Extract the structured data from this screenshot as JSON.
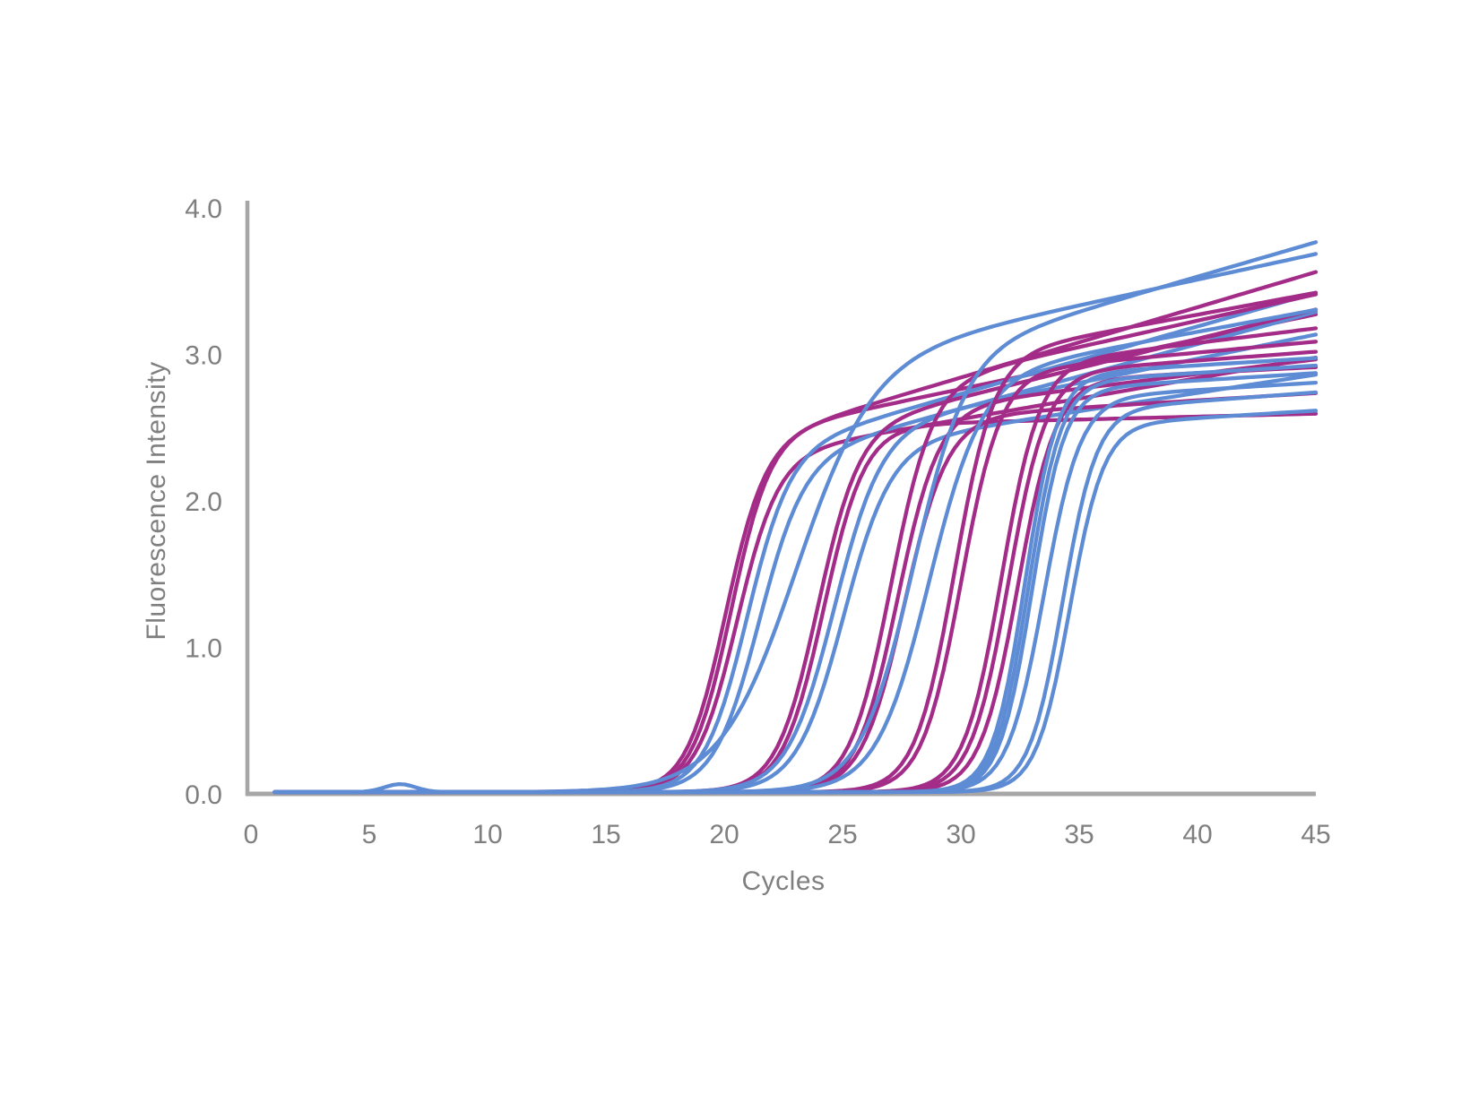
{
  "page": {
    "background": "#ffffff"
  },
  "chart_data": {
    "type": "line",
    "title": "",
    "xlabel": "Cycles",
    "ylabel": "Fluorescence Intensity",
    "xlim": [
      0,
      45
    ],
    "ylim": [
      0,
      4
    ],
    "grid": false,
    "legend": false,
    "x_ticks": [
      {
        "value": 0,
        "label": "0"
      },
      {
        "value": 5,
        "label": "5"
      },
      {
        "value": 10,
        "label": "10"
      },
      {
        "value": 15,
        "label": "15"
      },
      {
        "value": 20,
        "label": "20"
      },
      {
        "value": 25,
        "label": "25"
      },
      {
        "value": 30,
        "label": "30"
      },
      {
        "value": 35,
        "label": "35"
      },
      {
        "value": 40,
        "label": "40"
      },
      {
        "value": 45,
        "label": "45"
      }
    ],
    "y_ticks": [
      {
        "value": 0,
        "label": "0.0"
      },
      {
        "value": 1,
        "label": "1.0"
      },
      {
        "value": 2,
        "label": "2.0"
      },
      {
        "value": 3,
        "label": "3.0"
      },
      {
        "value": 4,
        "label": "4.0"
      }
    ],
    "colors": {
      "blue": "#5d8bd4",
      "magenta": "#a32c88",
      "axis": "#a6a6a6",
      "tick_text": "#7f7f7f"
    },
    "stroke_width": 4.3,
    "baseline": 0.012,
    "sampling": {
      "start": 1,
      "end": 45,
      "step": 0.25
    },
    "model": "F(c) = baseline + L*(plateau + drift*(c-ct)) + bump, L = 1/(1+exp(-slope*(c-ct)))",
    "series": [
      {
        "id": "curve-01",
        "color": "magenta",
        "ct": 20.0,
        "slope": 1.2,
        "plateau": 2.35,
        "drift": 0.048
      },
      {
        "id": "curve-02",
        "color": "magenta",
        "ct": 20.25,
        "slope": 1.2,
        "plateau": 2.42,
        "drift": 0.034
      },
      {
        "id": "curve-03",
        "color": "magenta",
        "ct": 20.5,
        "slope": 1.15,
        "plateau": 2.28,
        "drift": 0.028
      },
      {
        "id": "curve-04",
        "color": "blue",
        "ct": 20.9,
        "slope": 1.1,
        "plateau": 2.3,
        "drift": 0.046
      },
      {
        "id": "curve-05",
        "color": "blue",
        "ct": 21.4,
        "slope": 1.05,
        "plateau": 2.24,
        "drift": 0.044
      },
      {
        "id": "curve-06",
        "color": "blue",
        "ct": 22.9,
        "slope": 0.62,
        "plateau": 2.9,
        "drift": 0.035
      },
      {
        "id": "curve-07",
        "color": "magenta",
        "ct": 23.9,
        "slope": 1.15,
        "plateau": 2.45,
        "drift": 0.04
      },
      {
        "id": "curve-08",
        "color": "magenta",
        "ct": 24.2,
        "slope": 1.15,
        "plateau": 2.5,
        "drift": 0.004
      },
      {
        "id": "curve-09",
        "color": "blue",
        "ct": 24.6,
        "slope": 1.0,
        "plateau": 2.45,
        "drift": 0.033
      },
      {
        "id": "curve-10",
        "color": "blue",
        "ct": 25.0,
        "slope": 1.0,
        "plateau": 2.35,
        "drift": 0.025
      },
      {
        "id": "curve-11",
        "color": "magenta",
        "ct": 27.0,
        "slope": 1.15,
        "plateau": 2.75,
        "drift": 0.036
      },
      {
        "id": "curve-12",
        "color": "magenta",
        "ct": 27.3,
        "slope": 1.15,
        "plateau": 2.6,
        "drift": 0.02
      },
      {
        "id": "curve-13",
        "color": "magenta",
        "ct": 27.6,
        "slope": 1.1,
        "plateau": 2.55,
        "drift": 0.01
      },
      {
        "id": "curve-14",
        "color": "blue",
        "ct": 27.9,
        "slope": 0.9,
        "plateau": 2.95,
        "drift": 0.047
      },
      {
        "id": "curve-15",
        "color": "blue",
        "ct": 28.6,
        "slope": 0.9,
        "plateau": 2.8,
        "drift": 0.03
      },
      {
        "id": "curve-16",
        "color": "magenta",
        "ct": 29.7,
        "slope": 1.2,
        "plateau": 2.95,
        "drift": 0.03
      },
      {
        "id": "curve-17",
        "color": "magenta",
        "ct": 30.0,
        "slope": 1.2,
        "plateau": 2.85,
        "drift": 0.015
      },
      {
        "id": "curve-18",
        "color": "magenta",
        "ct": 31.7,
        "slope": 1.25,
        "plateau": 2.9,
        "drift": 0.02
      },
      {
        "id": "curve-19",
        "color": "magenta",
        "ct": 32.0,
        "slope": 1.25,
        "plateau": 2.85,
        "drift": 0.012
      },
      {
        "id": "curve-20",
        "color": "magenta",
        "ct": 32.4,
        "slope": 1.25,
        "plateau": 2.8,
        "drift": 0.008
      },
      {
        "id": "curve-21",
        "color": "blue",
        "ct": 32.7,
        "slope": 1.45,
        "plateau": 2.84,
        "drift": 0.01,
        "bump": {
          "center": 6.3,
          "height": 0.055,
          "sigma": 0.65
        }
      },
      {
        "id": "curve-22",
        "color": "blue",
        "ct": 32.85,
        "slope": 1.45,
        "plateau": 2.79,
        "drift": 0.01
      },
      {
        "id": "curve-23",
        "color": "blue",
        "ct": 33.0,
        "slope": 1.45,
        "plateau": 2.74,
        "drift": 0.01
      },
      {
        "id": "curve-24",
        "color": "blue",
        "ct": 33.5,
        "slope": 1.3,
        "plateau": 2.68,
        "drift": 0.01
      },
      {
        "id": "curve-25",
        "color": "blue",
        "ct": 34.3,
        "slope": 1.4,
        "plateau": 2.6,
        "drift": 0.012
      },
      {
        "id": "curve-26",
        "color": "blue",
        "ct": 34.6,
        "slope": 1.4,
        "plateau": 2.5,
        "drift": 0.01
      }
    ]
  }
}
